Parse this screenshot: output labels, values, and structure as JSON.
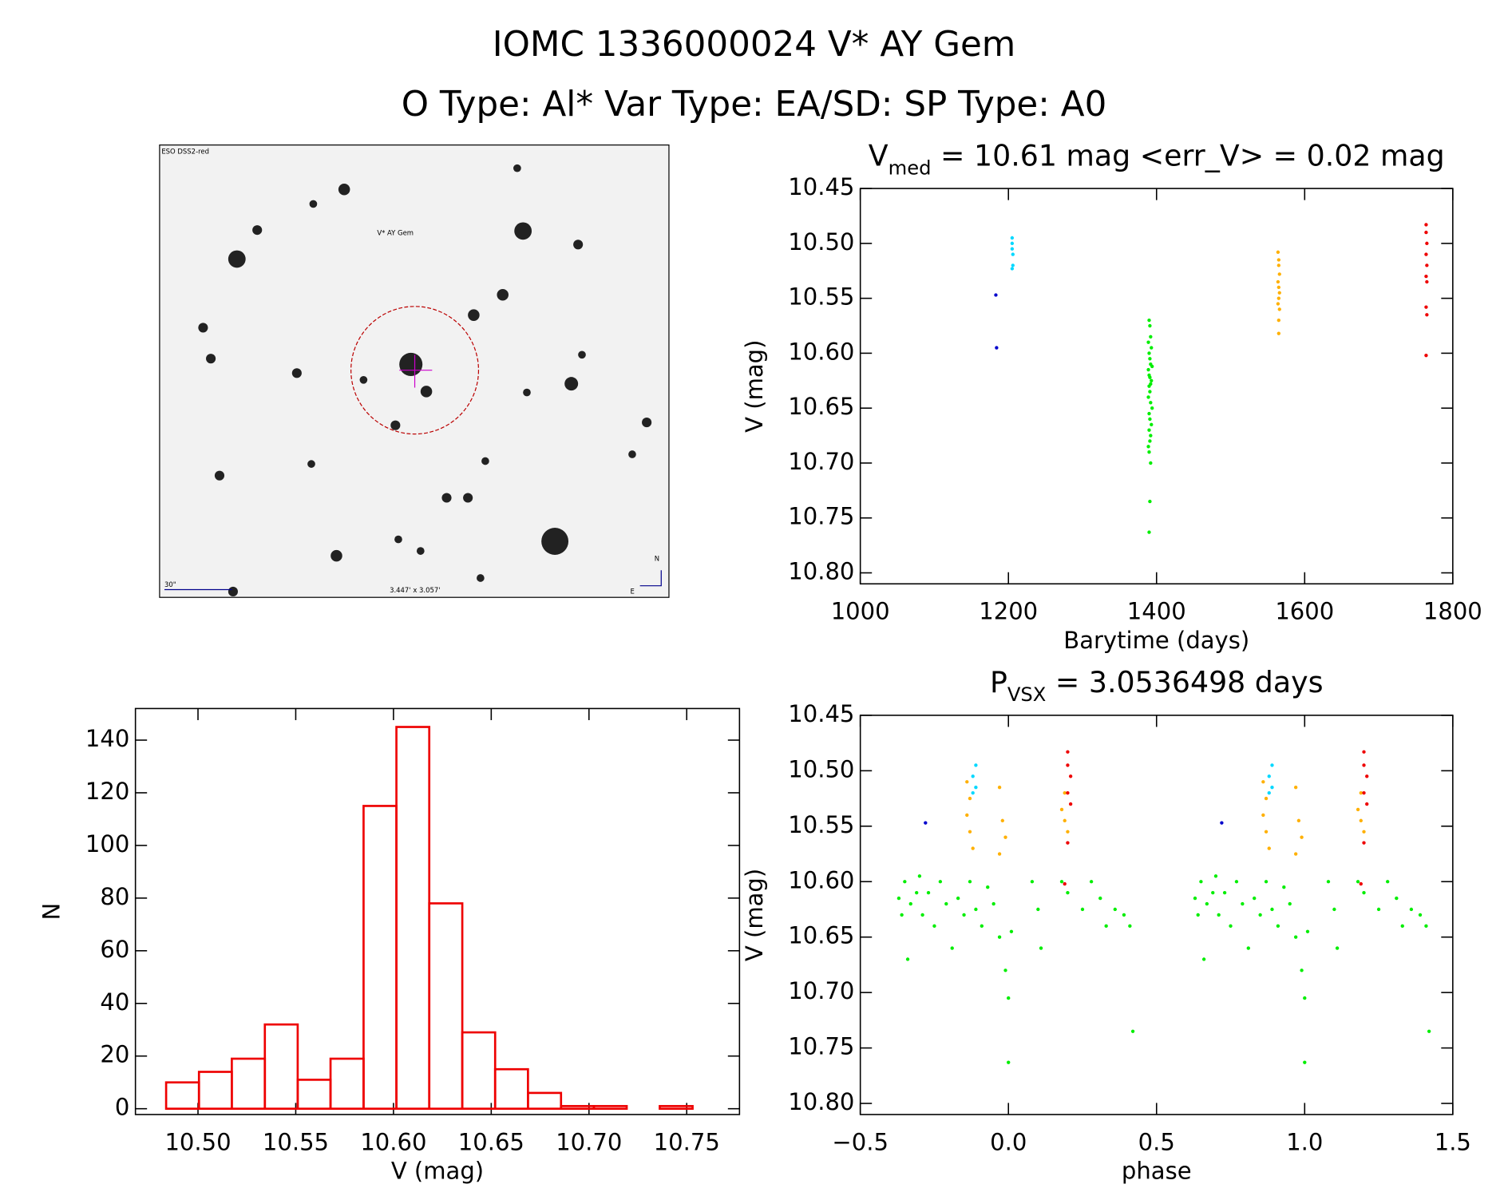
{
  "header": {
    "title": "IOMC 1336000024   V* AY Gem",
    "subtitle": "O Type: Al*  Var Type: EA/SD:  SP Type: A0"
  },
  "image_panel": {
    "survey": "ESO DSS2-red",
    "target": "V* AY Gem",
    "scale": "30\"",
    "field": "3.447' x 3.057'",
    "north": "N",
    "east": "E"
  },
  "chart_data": [
    {
      "type": "scatter",
      "title": [
        "V",
        "med",
        " = 10.61 mag <err_V> = 0.02 mag"
      ],
      "x_label": "Barytime (days)",
      "y_label": "V (mag)",
      "xlim": [
        1000,
        1800
      ],
      "xticks": [
        1000,
        1200,
        1400,
        1600,
        1800
      ],
      "ylim": [
        10.81,
        10.45
      ],
      "yticks": [
        10.45,
        {
          "value": 10.5,
          "label": "10.50"
        },
        10.55,
        {
          "value": 10.6,
          "label": "10.60"
        },
        10.65,
        {
          "value": 10.7,
          "label": "10.70"
        },
        10.75,
        {
          "value": 10.8,
          "label": "10.80"
        }
      ],
      "series": [
        {
          "color": "#0000cc",
          "x": [
            1183,
            1184
          ],
          "values": [
            10.547,
            10.595
          ]
        },
        {
          "color": "#00d8ff",
          "x": [
            1205,
            1205,
            1205,
            1206,
            1206,
            1205
          ],
          "values": [
            10.495,
            10.5,
            10.505,
            10.51,
            10.52,
            10.523
          ]
        },
        {
          "color": "#00ee00",
          "x": [
            1390,
            1391,
            1392,
            1389,
            1393,
            1390,
            1391,
            1392,
            1394,
            1389,
            1390,
            1391,
            1393,
            1392,
            1390,
            1391,
            1389,
            1392,
            1394,
            1390,
            1391,
            1393,
            1390,
            1392,
            1391,
            1389,
            1390,
            1392,
            1391,
            1390
          ],
          "values": [
            10.57,
            10.575,
            10.585,
            10.59,
            10.595,
            10.6,
            10.605,
            10.61,
            10.612,
            10.615,
            10.62,
            10.622,
            10.625,
            10.628,
            10.63,
            10.635,
            10.64,
            10.645,
            10.65,
            10.655,
            10.66,
            10.665,
            10.67,
            10.675,
            10.68,
            10.685,
            10.69,
            10.7,
            10.735,
            10.763
          ]
        },
        {
          "color": "#ffb000",
          "x": [
            1564,
            1565,
            1565,
            1566,
            1564,
            1565,
            1566,
            1565,
            1564,
            1566,
            1565,
            1565
          ],
          "values": [
            10.508,
            10.515,
            10.52,
            10.528,
            10.535,
            10.54,
            10.545,
            10.55,
            10.555,
            10.56,
            10.57,
            10.582
          ]
        },
        {
          "color": "#ee0000",
          "x": [
            1764,
            1764,
            1765,
            1764,
            1765,
            1764,
            1765,
            1764,
            1765,
            1764
          ],
          "values": [
            10.483,
            10.49,
            10.5,
            10.51,
            10.52,
            10.53,
            10.535,
            10.558,
            10.565,
            10.602
          ]
        }
      ]
    },
    {
      "type": "scatter",
      "title": [
        "P",
        "VSX",
        " = 3.0536498 days"
      ],
      "x_label": "phase",
      "y_label": "V (mag)",
      "xlim": [
        -0.5,
        1.5
      ],
      "xticks": [
        {
          "value": -0.5,
          "label": "−0.5"
        },
        {
          "value": 0,
          "label": "0.0"
        },
        0.5,
        {
          "value": 1,
          "label": "1.0"
        },
        1.5
      ],
      "ylim": [
        10.81,
        10.45
      ],
      "yticks": [
        10.45,
        {
          "value": 10.5,
          "label": "10.50"
        },
        10.55,
        {
          "value": 10.6,
          "label": "10.60"
        },
        10.65,
        {
          "value": 10.7,
          "label": "10.70"
        },
        10.75,
        {
          "value": 10.8,
          "label": "10.80"
        }
      ],
      "series": [
        {
          "color": "#0000cc",
          "x": [
            -0.28,
            0.72
          ],
          "values": [
            10.547,
            10.547
          ]
        },
        {
          "color": "#00d8ff",
          "x": [
            -0.11,
            -0.12,
            -0.11,
            -0.12,
            0.89,
            0.88,
            0.89,
            0.88
          ],
          "values": [
            10.495,
            10.505,
            10.515,
            10.52,
            10.495,
            10.505,
            10.515,
            10.52
          ]
        },
        {
          "color": "#00ee00",
          "x": [
            -0.37,
            -0.36,
            -0.35,
            -0.34,
            -0.33,
            -0.31,
            -0.3,
            -0.29,
            -0.27,
            -0.25,
            -0.23,
            -0.21,
            -0.19,
            -0.17,
            -0.15,
            -0.13,
            -0.11,
            -0.09,
            -0.07,
            -0.05,
            -0.03,
            -0.01,
            0,
            0.01,
            0.08,
            0.1,
            0.11,
            0.18,
            0.2,
            0.25,
            0.28,
            0.31,
            0.33,
            0.36,
            0.39,
            0.41,
            0.42,
            0,
            0.63,
            0.64,
            0.65,
            0.66,
            0.67,
            0.69,
            0.7,
            0.71,
            0.73,
            0.75,
            0.77,
            0.79,
            0.81,
            0.83,
            0.85,
            0.87,
            0.89,
            0.91,
            0.93,
            0.95,
            0.97,
            0.99,
            1,
            1.01,
            1.08,
            1.1,
            1.11,
            1.18,
            1.2,
            1.25,
            1.28,
            1.31,
            1.33,
            1.36,
            1.39,
            1.41,
            1.42,
            1
          ],
          "values": [
            10.615,
            10.63,
            10.6,
            10.67,
            10.62,
            10.61,
            10.595,
            10.63,
            10.61,
            10.64,
            10.6,
            10.62,
            10.66,
            10.615,
            10.63,
            10.6,
            10.625,
            10.64,
            10.605,
            10.62,
            10.65,
            10.68,
            10.705,
            10.645,
            10.6,
            10.625,
            10.66,
            10.6,
            10.61,
            10.625,
            10.6,
            10.615,
            10.64,
            10.625,
            10.63,
            10.64,
            10.735,
            10.763,
            10.615,
            10.63,
            10.6,
            10.67,
            10.62,
            10.61,
            10.595,
            10.63,
            10.61,
            10.64,
            10.6,
            10.62,
            10.66,
            10.615,
            10.63,
            10.6,
            10.625,
            10.64,
            10.605,
            10.62,
            10.65,
            10.68,
            10.705,
            10.645,
            10.6,
            10.625,
            10.66,
            10.6,
            10.61,
            10.625,
            10.6,
            10.615,
            10.64,
            10.625,
            10.63,
            10.64,
            10.735,
            10.763
          ]
        },
        {
          "color": "#ffb000",
          "x": [
            -0.14,
            -0.13,
            -0.14,
            -0.13,
            -0.12,
            -0.03,
            -0.02,
            -0.01,
            -0.03,
            0.19,
            0.18,
            0.19,
            0.2,
            0.86,
            0.87,
            0.86,
            0.87,
            0.88,
            0.97,
            0.98,
            0.99,
            0.97,
            1.19,
            1.18,
            1.19,
            1.2
          ],
          "values": [
            10.51,
            10.525,
            10.54,
            10.555,
            10.57,
            10.515,
            10.545,
            10.56,
            10.575,
            10.52,
            10.535,
            10.545,
            10.555,
            10.51,
            10.525,
            10.54,
            10.555,
            10.57,
            10.515,
            10.545,
            10.56,
            10.575,
            10.52,
            10.535,
            10.545,
            10.555
          ]
        },
        {
          "color": "#ee0000",
          "x": [
            0.2,
            0.2,
            0.21,
            0.2,
            0.21,
            0.2,
            0.19,
            1.2,
            1.2,
            1.21,
            1.2,
            1.21,
            1.2,
            1.19
          ],
          "values": [
            10.483,
            10.495,
            10.505,
            10.52,
            10.53,
            10.565,
            10.602,
            10.483,
            10.495,
            10.505,
            10.52,
            10.53,
            10.565,
            10.602
          ]
        }
      ]
    },
    {
      "type": "histogram",
      "x_label": "V (mag)",
      "y_label": "N",
      "color": "#ee0000",
      "bins": [
        10.4837,
        10.5005,
        10.5173,
        10.5342,
        10.551,
        10.5678,
        10.5847,
        10.6015,
        10.6183,
        10.6352,
        10.652,
        10.6688,
        10.6857,
        10.7025,
        10.7193,
        10.7362,
        10.753
      ],
      "values": [
        10,
        14,
        19,
        32,
        11,
        19,
        115,
        145,
        78,
        29,
        15,
        6,
        1,
        1,
        0,
        1
      ],
      "xlim": [
        10.468,
        10.777
      ],
      "xticks": [
        {
          "value": 10.5,
          "label": "10.50"
        },
        10.55,
        {
          "value": 10.6,
          "label": "10.60"
        },
        10.65,
        {
          "value": 10.7,
          "label": "10.70"
        },
        10.75
      ],
      "ylim": [
        -2.2,
        152
      ],
      "yticks": [
        0,
        20,
        40,
        60,
        80,
        100,
        120,
        140
      ]
    }
  ]
}
